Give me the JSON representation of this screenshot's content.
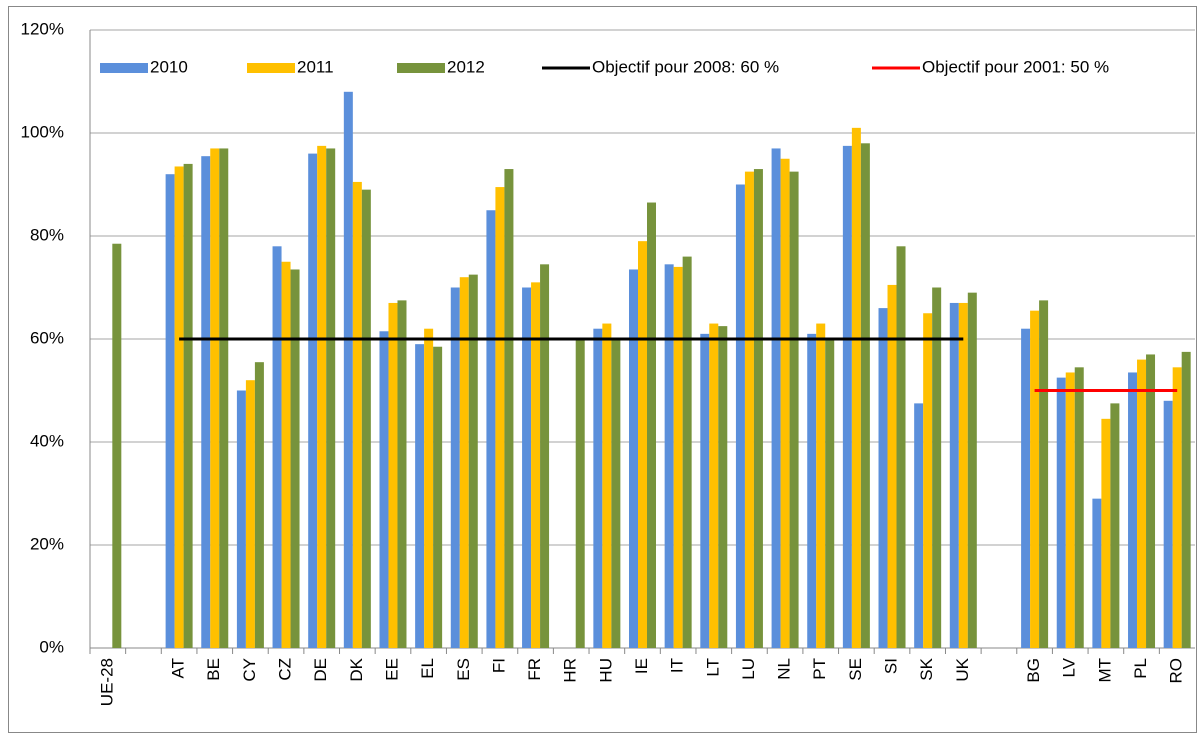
{
  "chart_data": {
    "type": "bar",
    "categories": [
      "UE-28",
      null,
      "AT",
      "BE",
      "CY",
      "CZ",
      "DE",
      "DK",
      "EE",
      "EL",
      "ES",
      "FI",
      "FR",
      "HR",
      "HU",
      "IE",
      "IT",
      "LT",
      "LU",
      "NL",
      "PT",
      "SE",
      "SI",
      "SK",
      "UK",
      null,
      "BG",
      "LV",
      "MT",
      "PL",
      "RO"
    ],
    "series": [
      {
        "name": "2010",
        "type": "bar",
        "color": "#5b8fdb",
        "values": [
          null,
          null,
          92,
          95.5,
          50,
          78,
          96,
          108,
          61.5,
          59,
          70,
          85,
          70,
          null,
          62,
          73.5,
          74.5,
          61,
          90,
          97,
          61,
          97.5,
          66,
          47.5,
          67,
          null,
          62,
          52.5,
          29,
          53.5,
          48
        ]
      },
      {
        "name": "2011",
        "type": "bar",
        "color": "#ffc000",
        "values": [
          null,
          null,
          93.5,
          97,
          52,
          75,
          97.5,
          90.5,
          67,
          62,
          72,
          89.5,
          71,
          null,
          63,
          79,
          74,
          63,
          92.5,
          95,
          63,
          101,
          70.5,
          65,
          67,
          null,
          65.5,
          53.5,
          44.5,
          56,
          54.5
        ]
      },
      {
        "name": "2012",
        "type": "bar",
        "color": "#77933c",
        "values": [
          78.5,
          null,
          94,
          97,
          55.5,
          73.5,
          97,
          89,
          67.5,
          58.5,
          72.5,
          93,
          74.5,
          60,
          60,
          86.5,
          76,
          62.5,
          93,
          92.5,
          60,
          98,
          78,
          70,
          69,
          null,
          67.5,
          54.5,
          47.5,
          57,
          57.5
        ]
      },
      {
        "name": "Objectif pour 2008: 60 %",
        "type": "line",
        "color": "#000000",
        "values": [
          null,
          null,
          60,
          60,
          60,
          60,
          60,
          60,
          60,
          60,
          60,
          60,
          60,
          60,
          60,
          60,
          60,
          60,
          60,
          60,
          60,
          60,
          60,
          60,
          60,
          null,
          null,
          null,
          null,
          null,
          null
        ]
      },
      {
        "name": "Objectif pour 2001: 50 %",
        "type": "line",
        "color": "#ff0000",
        "values": [
          null,
          null,
          null,
          null,
          null,
          null,
          null,
          null,
          null,
          null,
          null,
          null,
          null,
          null,
          null,
          null,
          null,
          null,
          null,
          null,
          null,
          null,
          null,
          null,
          null,
          null,
          50,
          50,
          50,
          50,
          50
        ]
      }
    ],
    "ylim": [
      0,
      120
    ],
    "yticks": [
      {
        "value": 0,
        "label": "0%"
      },
      {
        "value": 20,
        "label": "20%"
      },
      {
        "value": 40,
        "label": "40%"
      },
      {
        "value": 60,
        "label": "60%"
      },
      {
        "value": 80,
        "label": "80%"
      },
      {
        "value": 100,
        "label": "100%"
      },
      {
        "value": 120,
        "label": "120%"
      }
    ],
    "grid": true,
    "legend": "top"
  }
}
